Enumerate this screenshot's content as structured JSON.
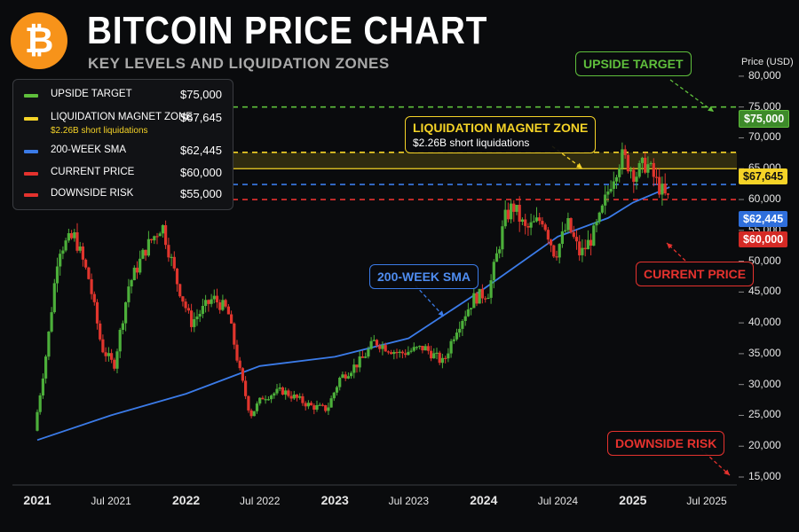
{
  "header": {
    "logo_symbol": "₿",
    "title": "BITCOIN PRICE CHART",
    "subtitle": "KEY LEVELS AND LIQUIDATION ZONES"
  },
  "legend": {
    "items": [
      {
        "label": "UPSIDE TARGET",
        "value": "$75,000",
        "color": "#5fbf3c"
      },
      {
        "label": "LIQUIDATION MAGNET ZONE",
        "value": "$67,645",
        "color": "#f5d327",
        "sub": "$2.26B short liquidations"
      },
      {
        "label": "200-WEEK SMA",
        "value": "$62,445",
        "color": "#3b7be8"
      },
      {
        "label": "CURRENT PRICE",
        "value": "$60,000",
        "color": "#e5322e"
      },
      {
        "label": "DOWNSIDE RISK",
        "value": "$55,000",
        "color": "#e5322e"
      }
    ]
  },
  "axis": {
    "y_title": "Price (USD)",
    "y_ticks": [
      "80,000",
      "75,000",
      "70,000",
      "65,000",
      "60,000",
      "55,000",
      "50,000",
      "45,000",
      "40,000",
      "35,000",
      "30,000",
      "25,000",
      "20,000",
      "15,000"
    ],
    "x_ticks": [
      {
        "label": "2021",
        "year": true
      },
      {
        "label": "Jul 2021",
        "year": false
      },
      {
        "label": "2022",
        "year": true
      },
      {
        "label": "Jul 2022",
        "year": false
      },
      {
        "label": "2023",
        "year": true
      },
      {
        "label": "Jul 2023",
        "year": false
      },
      {
        "label": "2024",
        "year": true
      },
      {
        "label": "Jul 2024",
        "year": false
      },
      {
        "label": "2025",
        "year": true
      },
      {
        "label": "Jul 2025",
        "year": false
      }
    ]
  },
  "tags": {
    "upside": "$75,000",
    "magnet": "$67,645",
    "sma": "$62,445",
    "current": "$60,000"
  },
  "callouts": {
    "upside": "UPSIDE TARGET",
    "magnet_title": "LIQUIDATION MAGNET ZONE",
    "magnet_sub": "$2.26B short liquidations",
    "sma": "200-WEEK SMA",
    "current": "CURRENT PRICE",
    "downside": "DOWNSIDE RISK"
  },
  "colors": {
    "up": "#4caf3a",
    "down": "#e0352d",
    "green": "#5fbf3c",
    "yellow": "#f5d327",
    "blue": "#3b7be8",
    "red": "#e5322e",
    "background": "#0a0b0d"
  },
  "chart_data": {
    "type": "candlestick",
    "title": "BITCOIN PRICE CHART",
    "subtitle": "KEY LEVELS AND LIQUIDATION ZONES",
    "ylabel": "Price (USD)",
    "ylim": [
      15000,
      80000
    ],
    "xlim": [
      "2021-01-01",
      "2025-07-01"
    ],
    "grid": false,
    "legend_position": "top-left",
    "levels": [
      {
        "name": "UPSIDE TARGET",
        "value": 75000,
        "style": "dashed",
        "color": "#5fbf3c"
      },
      {
        "name": "LIQUIDATION MAGNET ZONE",
        "value": 67645,
        "style": "dashed",
        "color": "#f5d327",
        "zone_low": 65000,
        "zone_high": 67645,
        "note": "$2.26B short liquidations"
      },
      {
        "name": "200-WEEK SMA",
        "value": 62445,
        "style": "dashed",
        "color": "#3b7be8"
      },
      {
        "name": "CURRENT PRICE",
        "value": 60000,
        "style": "dashed",
        "color": "#e5322e"
      },
      {
        "name": "DOWNSIDE RISK",
        "value": 55000,
        "color": "#e5322e"
      }
    ],
    "price_path": [
      {
        "date": "2021-01-01",
        "price": 22500
      },
      {
        "date": "2021-02-01",
        "price": 36000
      },
      {
        "date": "2021-03-01",
        "price": 52000
      },
      {
        "date": "2021-04-10",
        "price": 54000
      },
      {
        "date": "2021-05-15",
        "price": 47000
      },
      {
        "date": "2021-06-15",
        "price": 36000
      },
      {
        "date": "2021-07-15",
        "price": 33000
      },
      {
        "date": "2021-08-20",
        "price": 46000
      },
      {
        "date": "2021-10-01",
        "price": 52000
      },
      {
        "date": "2021-11-10",
        "price": 56000
      },
      {
        "date": "2021-12-15",
        "price": 47000
      },
      {
        "date": "2022-01-20",
        "price": 40000
      },
      {
        "date": "2022-03-15",
        "price": 44000
      },
      {
        "date": "2022-04-20",
        "price": 42000
      },
      {
        "date": "2022-05-20",
        "price": 32000
      },
      {
        "date": "2022-06-15",
        "price": 25000
      },
      {
        "date": "2022-07-15",
        "price": 28000
      },
      {
        "date": "2022-09-01",
        "price": 29000
      },
      {
        "date": "2022-11-10",
        "price": 26500
      },
      {
        "date": "2022-12-20",
        "price": 26000
      },
      {
        "date": "2023-01-20",
        "price": 31000
      },
      {
        "date": "2023-03-15",
        "price": 34000
      },
      {
        "date": "2023-04-15",
        "price": 37000
      },
      {
        "date": "2023-06-15",
        "price": 35000
      },
      {
        "date": "2023-08-15",
        "price": 36000
      },
      {
        "date": "2023-10-01",
        "price": 33500
      },
      {
        "date": "2023-11-01",
        "price": 39000
      },
      {
        "date": "2023-12-15",
        "price": 44000
      },
      {
        "date": "2024-01-20",
        "price": 45000
      },
      {
        "date": "2024-03-01",
        "price": 57000
      },
      {
        "date": "2024-03-20",
        "price": 59000
      },
      {
        "date": "2024-04-20",
        "price": 55000
      },
      {
        "date": "2024-06-01",
        "price": 57000
      },
      {
        "date": "2024-07-01",
        "price": 51000
      },
      {
        "date": "2024-08-01",
        "price": 56000
      },
      {
        "date": "2024-09-01",
        "price": 51000
      },
      {
        "date": "2024-10-01",
        "price": 54000
      },
      {
        "date": "2024-10-20",
        "price": 57000
      },
      {
        "date": "2024-11-15",
        "price": 63000
      },
      {
        "date": "2024-12-10",
        "price": 67000
      },
      {
        "date": "2024-12-25",
        "price": 66000
      },
      {
        "date": "2025-01-15",
        "price": 64000
      },
      {
        "date": "2025-02-10",
        "price": 66000
      },
      {
        "date": "2025-03-01",
        "price": 63500
      },
      {
        "date": "2025-04-01",
        "price": 60000
      }
    ],
    "sma_path": [
      {
        "date": "2021-01-01",
        "price": 21000
      },
      {
        "date": "2021-07-01",
        "price": 25000
      },
      {
        "date": "2022-01-01",
        "price": 28500
      },
      {
        "date": "2022-07-01",
        "price": 33000
      },
      {
        "date": "2023-01-01",
        "price": 34500
      },
      {
        "date": "2023-07-01",
        "price": 37500
      },
      {
        "date": "2024-01-01",
        "price": 45500
      },
      {
        "date": "2024-07-01",
        "price": 54000
      },
      {
        "date": "2024-11-01",
        "price": 57000
      },
      {
        "date": "2025-01-01",
        "price": 59500
      },
      {
        "date": "2025-04-01",
        "price": 62000
      }
    ]
  }
}
